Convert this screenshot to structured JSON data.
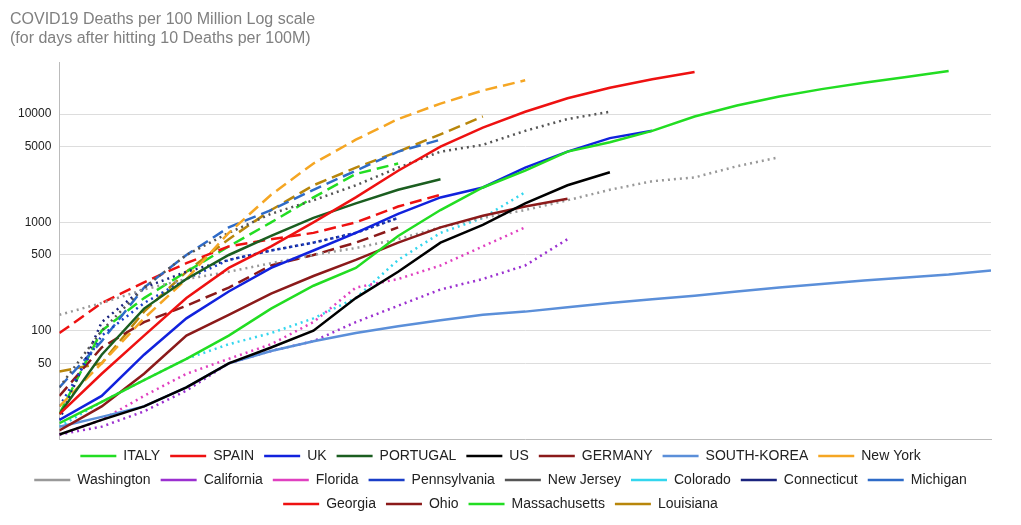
{
  "chart_data": {
    "type": "line",
    "title": "COVID19 Deaths per 100 Million Log scale",
    "subtitle": "(for days after hitting 10 Deaths per 100M)",
    "x": [
      0,
      2,
      4,
      6,
      8,
      10,
      12,
      14,
      16,
      18,
      20,
      22,
      24,
      26,
      28,
      30,
      32,
      34,
      36,
      38,
      40,
      42,
      44
    ],
    "xlim": [
      0,
      44
    ],
    "ylim": [
      10,
      30000
    ],
    "yticks": [
      50,
      100,
      500,
      1000,
      5000,
      10000
    ],
    "log": "y",
    "grid": true,
    "legend": "bottom",
    "tick_labels": "y",
    "series": [
      {
        "name": "ITALY",
        "color": "#22dd22",
        "line_style": "solid",
        "values": [
          14,
          22,
          35,
          55,
          90,
          160,
          260,
          380,
          750,
          1300,
          2100,
          3000,
          4500,
          5500,
          7000,
          9500,
          12000,
          14500,
          17000,
          19500,
          22000,
          25000,
          null
        ]
      },
      {
        "name": "SPAIN",
        "color": "#ee1111",
        "line_style": "solid",
        "values": [
          17,
          40,
          90,
          200,
          380,
          600,
          1000,
          1700,
          3000,
          5000,
          7500,
          10500,
          14000,
          17500,
          21000,
          24500,
          null,
          null,
          null,
          null,
          null,
          null,
          null
        ]
      },
      {
        "name": "UK",
        "color": "#1122dd",
        "line_style": "solid",
        "values": [
          15,
          25,
          60,
          130,
          230,
          380,
          550,
          800,
          1200,
          1700,
          2100,
          3200,
          4500,
          6000,
          7000,
          null,
          null,
          null,
          null,
          null,
          null,
          null,
          null
        ]
      },
      {
        "name": "PORTUGAL",
        "color": "#1b5e20",
        "line_style": "solid",
        "values": [
          17,
          60,
          160,
          300,
          500,
          750,
          1100,
          1500,
          2000,
          2500,
          null,
          null,
          null,
          null,
          null,
          null,
          null,
          null,
          null,
          null,
          null,
          null,
          null
        ]
      },
      {
        "name": "US",
        "color": "#000000",
        "line_style": "solid",
        "values": [
          11,
          15,
          20,
          30,
          50,
          70,
          100,
          200,
          350,
          650,
          950,
          1500,
          2200,
          2900,
          null,
          null,
          null,
          null,
          null,
          null,
          null,
          null,
          null
        ]
      },
      {
        "name": "GERMANY",
        "color": "#8b1a1a",
        "line_style": "solid",
        "values": [
          12,
          20,
          40,
          90,
          140,
          220,
          320,
          450,
          650,
          900,
          1150,
          1400,
          1650,
          null,
          null,
          null,
          null,
          null,
          null,
          null,
          null,
          null,
          null
        ]
      },
      {
        "name": "SOUTH-KOREA",
        "color": "#5b8fd9",
        "line_style": "solid",
        "values": [
          13,
          16,
          20,
          30,
          50,
          65,
          80,
          95,
          110,
          125,
          140,
          150,
          165,
          180,
          195,
          210,
          230,
          250,
          270,
          290,
          310,
          330,
          360
        ]
      },
      {
        "name": "New York",
        "color": "#f5a623",
        "line_style": "dashed",
        "values": [
          20,
          50,
          130,
          300,
          800,
          1800,
          3500,
          5800,
          9000,
          12500,
          16500,
          20500,
          null,
          null,
          null,
          null,
          null,
          null,
          null,
          null,
          null,
          null,
          null
        ]
      },
      {
        "name": "Washington",
        "color": "#999999",
        "line_style": "dotted",
        "values": [
          140,
          180,
          240,
          300,
          350,
          420,
          500,
          580,
          700,
          900,
          1100,
          1300,
          1600,
          2000,
          2400,
          2600,
          3300,
          4000,
          null,
          null,
          null,
          null,
          null
        ]
      },
      {
        "name": "California",
        "color": "#9b30d0",
        "line_style": "dotted",
        "values": [
          11,
          13,
          18,
          28,
          50,
          65,
          80,
          120,
          170,
          240,
          300,
          400,
          700,
          null,
          null,
          null,
          null,
          null,
          null,
          null,
          null,
          null,
          null
        ]
      },
      {
        "name": "Florida",
        "color": "#e040c0",
        "line_style": "dotted",
        "values": [
          11,
          15,
          25,
          40,
          55,
          75,
          120,
          250,
          300,
          400,
          600,
          900,
          null,
          null,
          null,
          null,
          null,
          null,
          null,
          null,
          null,
          null,
          null
        ]
      },
      {
        "name": "Pennsylvania",
        "color": "#1a3ec8",
        "line_style": "dotted",
        "values": [
          20,
          90,
          180,
          300,
          450,
          550,
          650,
          800,
          1100,
          null,
          null,
          null,
          null,
          null,
          null,
          null,
          null,
          null,
          null,
          null,
          null,
          null,
          null
        ]
      },
      {
        "name": "New Jersey",
        "color": "#555555",
        "line_style": "dotted",
        "values": [
          30,
          100,
          250,
          500,
          800,
          1200,
          1600,
          2200,
          3200,
          4500,
          5200,
          7000,
          9000,
          10500,
          null,
          null,
          null,
          null,
          null,
          null,
          null,
          null,
          null
        ]
      },
      {
        "name": "Colorado",
        "color": "#33d6ee",
        "line_style": "dotted",
        "values": [
          13,
          22,
          35,
          55,
          75,
          95,
          130,
          200,
          450,
          800,
          1100,
          1900,
          null,
          null,
          null,
          null,
          null,
          null,
          null,
          null,
          null,
          null,
          null
        ]
      },
      {
        "name": "Connecticut",
        "color": "#1a237e",
        "line_style": "dotted",
        "values": [
          15,
          120,
          250,
          350,
          450,
          550,
          650,
          800,
          1100,
          null,
          null,
          null,
          null,
          null,
          null,
          null,
          null,
          null,
          null,
          null,
          null,
          null,
          null
        ]
      },
      {
        "name": "Michigan",
        "color": "#2e6bc8",
        "line_style": "dashed",
        "values": [
          30,
          80,
          250,
          500,
          900,
          1300,
          2000,
          3000,
          4500,
          5800,
          null,
          null,
          null,
          null,
          null,
          null,
          null,
          null,
          null,
          null,
          null,
          null,
          null
        ]
      },
      {
        "name": "Georgia",
        "color": "#ee1111",
        "line_style": "dashed",
        "values": [
          95,
          180,
          280,
          420,
          600,
          700,
          800,
          1000,
          1400,
          1800,
          null,
          null,
          null,
          null,
          null,
          null,
          null,
          null,
          null,
          null,
          null,
          null,
          null
        ]
      },
      {
        "name": "Ohio",
        "color": "#8b1a1a",
        "line_style": "dashed",
        "values": [
          25,
          70,
          120,
          170,
          250,
          400,
          500,
          650,
          900,
          null,
          null,
          null,
          null,
          null,
          null,
          null,
          null,
          null,
          null,
          null,
          null,
          null,
          null
        ]
      },
      {
        "name": "Massachusetts",
        "color": "#22dd22",
        "line_style": "dashed",
        "values": [
          17,
          100,
          200,
          350,
          600,
          1000,
          1700,
          2800,
          3500,
          null,
          null,
          null,
          null,
          null,
          null,
          null,
          null,
          null,
          null,
          null,
          null,
          null,
          null
        ]
      },
      {
        "name": "Louisiana",
        "color": "#b8860b",
        "line_style": "dashed",
        "values": [
          42,
          50,
          150,
          350,
          700,
          1300,
          2200,
          3200,
          4500,
          6500,
          9500,
          null,
          null,
          null,
          null,
          null,
          null,
          null,
          null,
          null,
          null,
          null,
          null
        ]
      }
    ]
  }
}
